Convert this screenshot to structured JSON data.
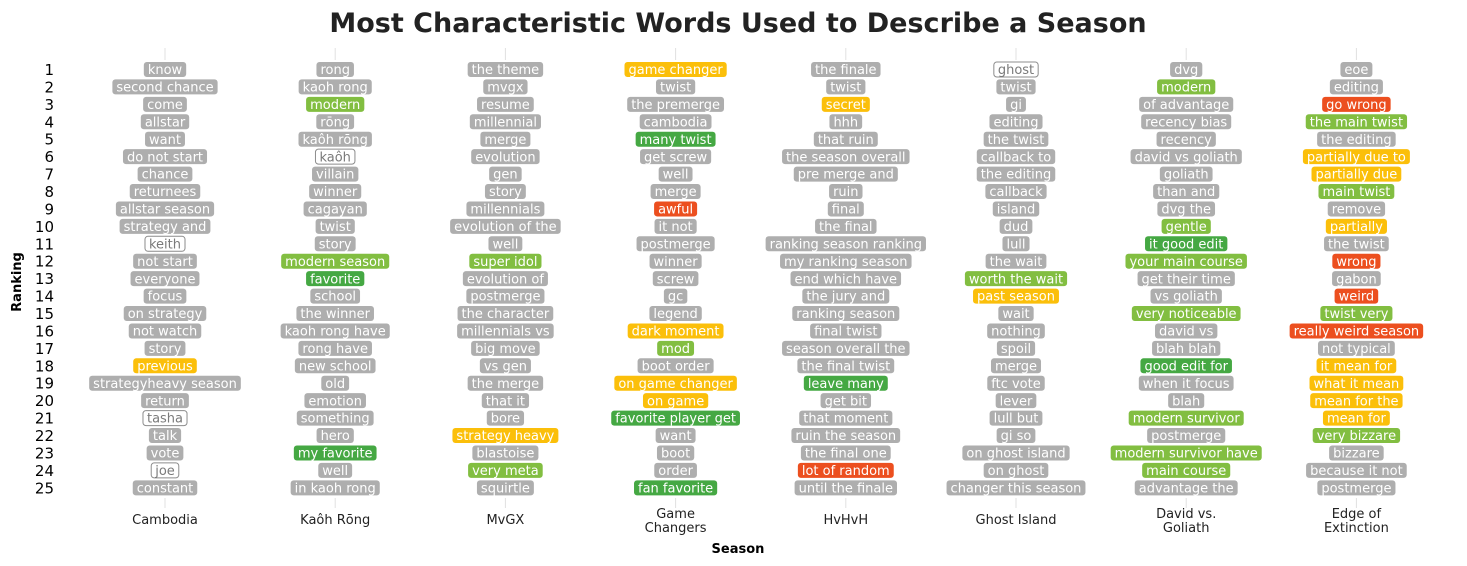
{
  "chart_data": {
    "type": "table",
    "title": "Most Characteristic Words Used to Describe a Season",
    "xlabel": "Season",
    "ylabel": "Ranking",
    "ranks": [
      1,
      2,
      3,
      4,
      5,
      6,
      7,
      8,
      9,
      10,
      11,
      12,
      13,
      14,
      15,
      16,
      17,
      18,
      19,
      20,
      21,
      22,
      23,
      24,
      25
    ],
    "category_colors": {
      "neutral": "#aeaeae",
      "mild_positive": "#82be41",
      "positive": "#45a843",
      "mixed": "#fbbf0a",
      "negative": "#ec4f1f",
      "name": "#ffffff"
    },
    "seasons": [
      {
        "name": [
          "Cambodia"
        ],
        "words": [
          {
            "text": "know",
            "category": "neutral"
          },
          {
            "text": "second chance",
            "category": "neutral"
          },
          {
            "text": "come",
            "category": "neutral"
          },
          {
            "text": "allstar",
            "category": "neutral"
          },
          {
            "text": "want",
            "category": "neutral"
          },
          {
            "text": "do not start",
            "category": "neutral"
          },
          {
            "text": "chance",
            "category": "neutral"
          },
          {
            "text": "returnees",
            "category": "neutral"
          },
          {
            "text": "allstar season",
            "category": "neutral"
          },
          {
            "text": "strategy and",
            "category": "neutral"
          },
          {
            "text": "keith",
            "category": "name"
          },
          {
            "text": "not start",
            "category": "neutral"
          },
          {
            "text": "everyone",
            "category": "neutral"
          },
          {
            "text": "focus",
            "category": "neutral"
          },
          {
            "text": "on strategy",
            "category": "neutral"
          },
          {
            "text": "not watch",
            "category": "neutral"
          },
          {
            "text": "story",
            "category": "neutral"
          },
          {
            "text": "previous",
            "category": "mixed"
          },
          {
            "text": "strategyheavy season",
            "category": "neutral"
          },
          {
            "text": "return",
            "category": "neutral"
          },
          {
            "text": "tasha",
            "category": "name"
          },
          {
            "text": "talk",
            "category": "neutral"
          },
          {
            "text": "vote",
            "category": "neutral"
          },
          {
            "text": "joe",
            "category": "name"
          },
          {
            "text": "constant",
            "category": "neutral"
          }
        ]
      },
      {
        "name": [
          "Kaôh Rōng"
        ],
        "words": [
          {
            "text": "rong",
            "category": "neutral"
          },
          {
            "text": "kaoh rong",
            "category": "neutral"
          },
          {
            "text": "modern",
            "category": "mild_positive"
          },
          {
            "text": "rōng",
            "category": "neutral"
          },
          {
            "text": "kaôh rōng",
            "category": "neutral"
          },
          {
            "text": "kaôh",
            "category": "name"
          },
          {
            "text": "villain",
            "category": "neutral"
          },
          {
            "text": "winner",
            "category": "neutral"
          },
          {
            "text": "cagayan",
            "category": "neutral"
          },
          {
            "text": "twist",
            "category": "neutral"
          },
          {
            "text": "story",
            "category": "neutral"
          },
          {
            "text": "modern season",
            "category": "mild_positive"
          },
          {
            "text": "favorite",
            "category": "positive"
          },
          {
            "text": "school",
            "category": "neutral"
          },
          {
            "text": "the winner",
            "category": "neutral"
          },
          {
            "text": "kaoh rong have",
            "category": "neutral"
          },
          {
            "text": "rong have",
            "category": "neutral"
          },
          {
            "text": "new school",
            "category": "neutral"
          },
          {
            "text": "old",
            "category": "neutral"
          },
          {
            "text": "emotion",
            "category": "neutral"
          },
          {
            "text": "something",
            "category": "neutral"
          },
          {
            "text": "hero",
            "category": "neutral"
          },
          {
            "text": "my favorite",
            "category": "positive"
          },
          {
            "text": "well",
            "category": "neutral"
          },
          {
            "text": "in kaoh rong",
            "category": "neutral"
          }
        ]
      },
      {
        "name": [
          "MvGX"
        ],
        "words": [
          {
            "text": "the theme",
            "category": "neutral"
          },
          {
            "text": "mvgx",
            "category": "neutral"
          },
          {
            "text": "resume",
            "category": "neutral"
          },
          {
            "text": "millennial",
            "category": "neutral"
          },
          {
            "text": "merge",
            "category": "neutral"
          },
          {
            "text": "evolution",
            "category": "neutral"
          },
          {
            "text": "gen",
            "category": "neutral"
          },
          {
            "text": "story",
            "category": "neutral"
          },
          {
            "text": "millennials",
            "category": "neutral"
          },
          {
            "text": "evolution of the",
            "category": "neutral"
          },
          {
            "text": "well",
            "category": "neutral"
          },
          {
            "text": "super idol",
            "category": "mild_positive"
          },
          {
            "text": "evolution of",
            "category": "neutral"
          },
          {
            "text": "postmerge",
            "category": "neutral"
          },
          {
            "text": "the character",
            "category": "neutral"
          },
          {
            "text": "millennials vs",
            "category": "neutral"
          },
          {
            "text": "big move",
            "category": "neutral"
          },
          {
            "text": "vs gen",
            "category": "neutral"
          },
          {
            "text": "the merge",
            "category": "neutral"
          },
          {
            "text": "that it",
            "category": "neutral"
          },
          {
            "text": "bore",
            "category": "neutral"
          },
          {
            "text": "strategy heavy",
            "category": "mixed"
          },
          {
            "text": "blastoise",
            "category": "neutral"
          },
          {
            "text": "very meta",
            "category": "mild_positive"
          },
          {
            "text": "squirtle",
            "category": "neutral"
          }
        ]
      },
      {
        "name": [
          "Game",
          "Changers"
        ],
        "words": [
          {
            "text": "game changer",
            "category": "mixed"
          },
          {
            "text": "twist",
            "category": "neutral"
          },
          {
            "text": "the premerge",
            "category": "neutral"
          },
          {
            "text": "cambodia",
            "category": "neutral"
          },
          {
            "text": "many twist",
            "category": "positive"
          },
          {
            "text": "get screw",
            "category": "neutral"
          },
          {
            "text": "well",
            "category": "neutral"
          },
          {
            "text": "merge",
            "category": "neutral"
          },
          {
            "text": "awful",
            "category": "negative"
          },
          {
            "text": "it not",
            "category": "neutral"
          },
          {
            "text": "postmerge",
            "category": "neutral"
          },
          {
            "text": "winner",
            "category": "neutral"
          },
          {
            "text": "screw",
            "category": "neutral"
          },
          {
            "text": "gc",
            "category": "neutral"
          },
          {
            "text": "legend",
            "category": "neutral"
          },
          {
            "text": "dark moment",
            "category": "mixed"
          },
          {
            "text": "mod",
            "category": "mild_positive"
          },
          {
            "text": "boot order",
            "category": "neutral"
          },
          {
            "text": "on game changer",
            "category": "mixed"
          },
          {
            "text": "on game",
            "category": "mixed"
          },
          {
            "text": "favorite player get",
            "category": "positive"
          },
          {
            "text": "want",
            "category": "neutral"
          },
          {
            "text": "boot",
            "category": "neutral"
          },
          {
            "text": "order",
            "category": "neutral"
          },
          {
            "text": "fan favorite",
            "category": "positive"
          }
        ]
      },
      {
        "name": [
          "HvHvH"
        ],
        "words": [
          {
            "text": "the finale",
            "category": "neutral"
          },
          {
            "text": "twist",
            "category": "neutral"
          },
          {
            "text": "secret",
            "category": "mixed"
          },
          {
            "text": "hhh",
            "category": "neutral"
          },
          {
            "text": "that ruin",
            "category": "neutral"
          },
          {
            "text": "the season overall",
            "category": "neutral"
          },
          {
            "text": "pre merge and",
            "category": "neutral"
          },
          {
            "text": "ruin",
            "category": "neutral"
          },
          {
            "text": "final",
            "category": "neutral"
          },
          {
            "text": "the final",
            "category": "neutral"
          },
          {
            "text": "ranking season ranking",
            "category": "neutral"
          },
          {
            "text": "my ranking season",
            "category": "neutral"
          },
          {
            "text": "end which have",
            "category": "neutral"
          },
          {
            "text": "the jury and",
            "category": "neutral"
          },
          {
            "text": "ranking season",
            "category": "neutral"
          },
          {
            "text": "final twist",
            "category": "neutral"
          },
          {
            "text": "season overall the",
            "category": "neutral"
          },
          {
            "text": "the final twist",
            "category": "neutral"
          },
          {
            "text": "leave many",
            "category": "positive"
          },
          {
            "text": "get bit",
            "category": "neutral"
          },
          {
            "text": "that moment",
            "category": "neutral"
          },
          {
            "text": "ruin the season",
            "category": "neutral"
          },
          {
            "text": "the final one",
            "category": "neutral"
          },
          {
            "text": "lot of random",
            "category": "negative"
          },
          {
            "text": "until the finale",
            "category": "neutral"
          }
        ]
      },
      {
        "name": [
          "Ghost Island"
        ],
        "words": [
          {
            "text": "ghost",
            "category": "name"
          },
          {
            "text": "twist",
            "category": "neutral"
          },
          {
            "text": "gi",
            "category": "neutral"
          },
          {
            "text": "editing",
            "category": "neutral"
          },
          {
            "text": "the twist",
            "category": "neutral"
          },
          {
            "text": "callback to",
            "category": "neutral"
          },
          {
            "text": "the editing",
            "category": "neutral"
          },
          {
            "text": "callback",
            "category": "neutral"
          },
          {
            "text": "island",
            "category": "neutral"
          },
          {
            "text": "dud",
            "category": "neutral"
          },
          {
            "text": "lull",
            "category": "neutral"
          },
          {
            "text": "the wait",
            "category": "neutral"
          },
          {
            "text": "worth the wait",
            "category": "mild_positive"
          },
          {
            "text": "past season",
            "category": "mixed"
          },
          {
            "text": "wait",
            "category": "neutral"
          },
          {
            "text": "nothing",
            "category": "neutral"
          },
          {
            "text": "spoil",
            "category": "neutral"
          },
          {
            "text": "merge",
            "category": "neutral"
          },
          {
            "text": "ftc vote",
            "category": "neutral"
          },
          {
            "text": "lever",
            "category": "neutral"
          },
          {
            "text": "lull but",
            "category": "neutral"
          },
          {
            "text": "gi so",
            "category": "neutral"
          },
          {
            "text": "on ghost island",
            "category": "neutral"
          },
          {
            "text": "on ghost",
            "category": "neutral"
          },
          {
            "text": "changer this season",
            "category": "neutral"
          }
        ]
      },
      {
        "name": [
          "David vs.",
          "Goliath"
        ],
        "words": [
          {
            "text": "dvg",
            "category": "neutral"
          },
          {
            "text": "modern",
            "category": "mild_positive"
          },
          {
            "text": "of advantage",
            "category": "neutral"
          },
          {
            "text": "recency bias",
            "category": "neutral"
          },
          {
            "text": "recency",
            "category": "neutral"
          },
          {
            "text": "david vs goliath",
            "category": "neutral"
          },
          {
            "text": "goliath",
            "category": "neutral"
          },
          {
            "text": "than and",
            "category": "neutral"
          },
          {
            "text": "dvg the",
            "category": "neutral"
          },
          {
            "text": "gentle",
            "category": "mild_positive"
          },
          {
            "text": "it good edit",
            "category": "positive"
          },
          {
            "text": "your main course",
            "category": "mild_positive"
          },
          {
            "text": "get their time",
            "category": "neutral"
          },
          {
            "text": "vs goliath",
            "category": "neutral"
          },
          {
            "text": "very noticeable",
            "category": "mild_positive"
          },
          {
            "text": "david vs",
            "category": "neutral"
          },
          {
            "text": "blah blah",
            "category": "neutral"
          },
          {
            "text": "good edit for",
            "category": "positive"
          },
          {
            "text": "when it focus",
            "category": "neutral"
          },
          {
            "text": "blah",
            "category": "neutral"
          },
          {
            "text": "modern survivor",
            "category": "mild_positive"
          },
          {
            "text": "postmerge",
            "category": "neutral"
          },
          {
            "text": "modern survivor have",
            "category": "mild_positive"
          },
          {
            "text": "main course",
            "category": "mild_positive"
          },
          {
            "text": "advantage the",
            "category": "neutral"
          }
        ]
      },
      {
        "name": [
          "Edge of",
          "Extinction"
        ],
        "words": [
          {
            "text": "eoe",
            "category": "neutral"
          },
          {
            "text": "editing",
            "category": "neutral"
          },
          {
            "text": "go wrong",
            "category": "negative"
          },
          {
            "text": "the main twist",
            "category": "mild_positive"
          },
          {
            "text": "the editing",
            "category": "neutral"
          },
          {
            "text": "partially due to",
            "category": "mixed"
          },
          {
            "text": "partially due",
            "category": "mixed"
          },
          {
            "text": "main twist",
            "category": "mild_positive"
          },
          {
            "text": "remove",
            "category": "neutral"
          },
          {
            "text": "partially",
            "category": "mixed"
          },
          {
            "text": "the twist",
            "category": "neutral"
          },
          {
            "text": "wrong",
            "category": "negative"
          },
          {
            "text": "gabon",
            "category": "neutral"
          },
          {
            "text": "weird",
            "category": "negative"
          },
          {
            "text": "twist very",
            "category": "mild_positive"
          },
          {
            "text": "really weird season",
            "category": "negative"
          },
          {
            "text": "not typical",
            "category": "neutral"
          },
          {
            "text": "it mean for",
            "category": "mixed"
          },
          {
            "text": "what it mean",
            "category": "mixed"
          },
          {
            "text": "mean for the",
            "category": "mixed"
          },
          {
            "text": "mean for",
            "category": "mixed"
          },
          {
            "text": "very bizzare",
            "category": "mild_positive"
          },
          {
            "text": "bizzare",
            "category": "neutral"
          },
          {
            "text": "because it not",
            "category": "neutral"
          },
          {
            "text": "postmerge",
            "category": "neutral"
          }
        ]
      }
    ]
  }
}
